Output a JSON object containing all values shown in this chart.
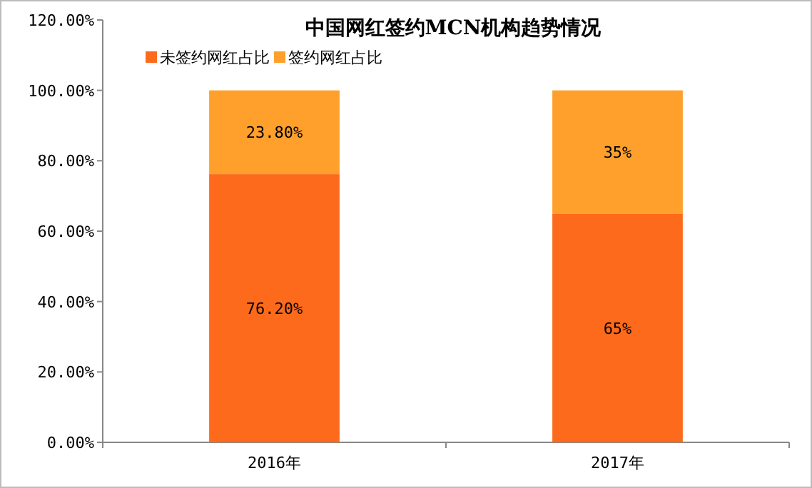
{
  "chart_data": {
    "type": "bar",
    "stacked": true,
    "title": "中国网红签约MCN机构趋势情况",
    "categories": [
      "2016年",
      "2017年"
    ],
    "series": [
      {
        "name": "未签约网红占比",
        "color": "#fe6a1c",
        "values": [
          76.2,
          65
        ],
        "value_labels": [
          "76.20%",
          "65%"
        ]
      },
      {
        "name": "签约网红占比",
        "color": "#fea02b",
        "values": [
          23.8,
          35
        ],
        "value_labels": [
          "23.80%",
          "35%"
        ]
      }
    ],
    "ylim": [
      0,
      120
    ],
    "yticks": [
      {
        "value": 0,
        "label": "0.00%"
      },
      {
        "value": 20,
        "label": "20.00%"
      },
      {
        "value": 40,
        "label": "40.00%"
      },
      {
        "value": 60,
        "label": "60.00%"
      },
      {
        "value": 80,
        "label": "80.00%"
      },
      {
        "value": 100,
        "label": "100.00%"
      },
      {
        "value": 120,
        "label": "120.00%"
      }
    ],
    "grid": false,
    "legend": "top left"
  }
}
